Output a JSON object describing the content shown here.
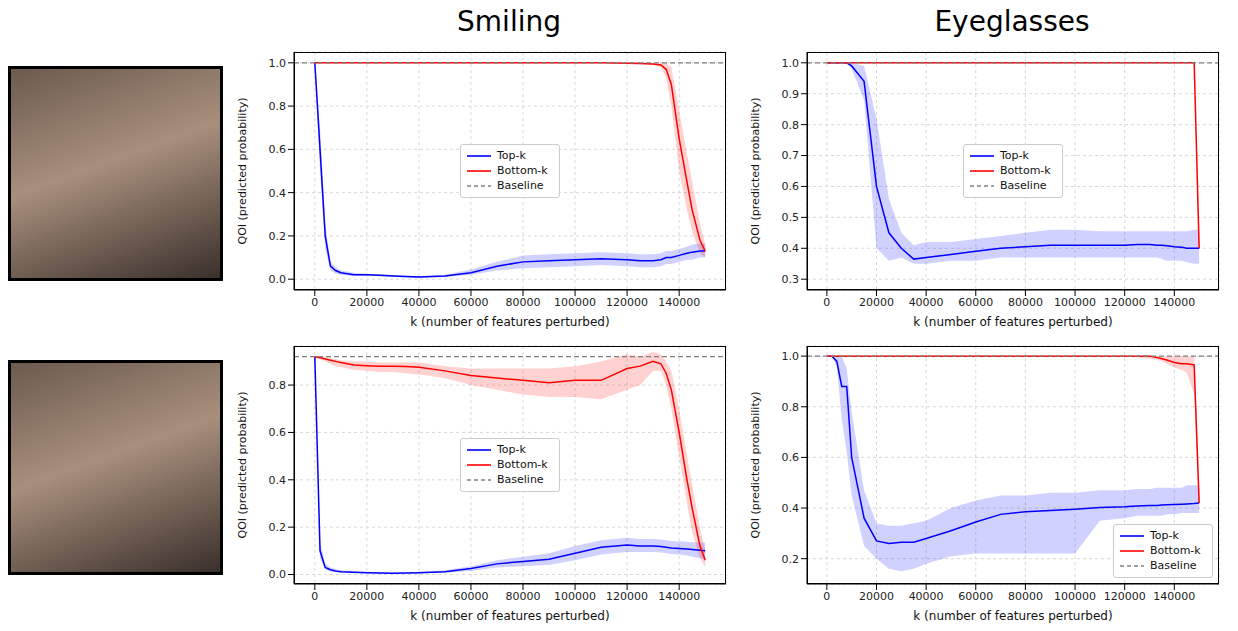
{
  "chart_data": [
    {
      "type": "line",
      "title": "Smiling",
      "xlabel": "k (number of features perturbed)",
      "ylabel": "QOI (predicted probability)",
      "xlim": [
        -8000,
        158000
      ],
      "xticks": [
        0,
        20000,
        40000,
        60000,
        80000,
        100000,
        120000,
        140000
      ],
      "ylim": [
        -0.05,
        1.05
      ],
      "yticks": [
        {
          "value": 0,
          "label": "0.0"
        },
        {
          "value": 0.2,
          "label": "0.2"
        },
        {
          "value": 0.4,
          "label": "0.4"
        },
        {
          "value": 0.6,
          "label": "0.6"
        },
        {
          "value": 0.8,
          "label": "0.8"
        },
        {
          "value": 1,
          "label": "1.0"
        }
      ],
      "grid": true,
      "legend": "center",
      "x": [
        0,
        2000,
        4000,
        6000,
        8000,
        10000,
        15000,
        20000,
        25000,
        30000,
        35000,
        40000,
        50000,
        60000,
        70000,
        80000,
        90000,
        100000,
        110000,
        120000,
        125000,
        130000,
        133000,
        135000,
        137000,
        140000,
        143000,
        145000,
        148000,
        150000
      ],
      "series": [
        {
          "name": "Top-k",
          "color": "#0000ff",
          "values": [
            1.0,
            0.6,
            0.2,
            0.06,
            0.04,
            0.03,
            0.02,
            0.02,
            0.018,
            0.015,
            0.012,
            0.01,
            0.015,
            0.03,
            0.06,
            0.08,
            0.085,
            0.09,
            0.095,
            0.09,
            0.085,
            0.085,
            0.09,
            0.1,
            0.1,
            0.11,
            0.12,
            0.125,
            0.13,
            0.13
          ],
          "lower": [
            1.0,
            0.5,
            0.14,
            0.04,
            0.025,
            0.02,
            0.015,
            0.015,
            0.013,
            0.01,
            0.008,
            0.007,
            0.01,
            0.02,
            0.04,
            0.05,
            0.055,
            0.06,
            0.065,
            0.06,
            0.055,
            0.055,
            0.06,
            0.07,
            0.07,
            0.08,
            0.09,
            0.09,
            0.1,
            0.1
          ],
          "upper": [
            1.0,
            0.7,
            0.26,
            0.08,
            0.055,
            0.04,
            0.03,
            0.025,
            0.022,
            0.02,
            0.016,
            0.014,
            0.02,
            0.045,
            0.08,
            0.11,
            0.115,
            0.12,
            0.125,
            0.12,
            0.115,
            0.115,
            0.12,
            0.13,
            0.13,
            0.14,
            0.15,
            0.16,
            0.165,
            0.165
          ]
        },
        {
          "name": "Bottom-k",
          "color": "#ff0000",
          "values": [
            1,
            1,
            1,
            1,
            1,
            1,
            1,
            1,
            1,
            1,
            1,
            1,
            1,
            1,
            1,
            1,
            1,
            1,
            1,
            0.998,
            0.997,
            0.995,
            0.99,
            0.97,
            0.9,
            0.65,
            0.45,
            0.32,
            0.18,
            0.13
          ],
          "lower": [
            1,
            1,
            1,
            1,
            1,
            1,
            1,
            1,
            1,
            1,
            1,
            1,
            1,
            1,
            1,
            1,
            1,
            1,
            1,
            0.995,
            0.993,
            0.99,
            0.98,
            0.93,
            0.8,
            0.5,
            0.32,
            0.22,
            0.12,
            0.1
          ],
          "upper": [
            1,
            1,
            1,
            1,
            1,
            1,
            1,
            1,
            1,
            1,
            1,
            1,
            1,
            1,
            1,
            1,
            1,
            1,
            1,
            1,
            1,
            1,
            1,
            1,
            0.98,
            0.78,
            0.58,
            0.45,
            0.26,
            0.16
          ]
        },
        {
          "name": "Baseline",
          "color": "#808080",
          "line_style": "dashed",
          "value": 1.0
        }
      ]
    },
    {
      "type": "line",
      "title": "Eyeglasses",
      "xlabel": "k (number of features perturbed)",
      "ylabel": "QOI (predicted probability)",
      "xlim": [
        -8000,
        158000
      ],
      "xticks": [
        0,
        20000,
        40000,
        60000,
        80000,
        100000,
        120000,
        140000
      ],
      "ylim": [
        0.265,
        1.035
      ],
      "yticks": [
        {
          "value": 0.3,
          "label": "0.3"
        },
        {
          "value": 0.4,
          "label": "0.4"
        },
        {
          "value": 0.5,
          "label": "0.5"
        },
        {
          "value": 0.6,
          "label": "0.6"
        },
        {
          "value": 0.7,
          "label": "0.7"
        },
        {
          "value": 0.8,
          "label": "0.8"
        },
        {
          "value": 0.9,
          "label": "0.9"
        },
        {
          "value": 1,
          "label": "1.0"
        }
      ],
      "grid": true,
      "legend": "center",
      "x": [
        0,
        2000,
        4000,
        6000,
        8000,
        10000,
        15000,
        20000,
        25000,
        30000,
        35000,
        40000,
        50000,
        60000,
        70000,
        80000,
        90000,
        100000,
        110000,
        120000,
        125000,
        130000,
        133000,
        135000,
        137000,
        140000,
        143000,
        145000,
        148000,
        150000
      ],
      "series": [
        {
          "name": "Top-k",
          "color": "#0000ff",
          "values": [
            1.0,
            1.0,
            1.0,
            1.0,
            1.0,
            0.99,
            0.94,
            0.6,
            0.45,
            0.4,
            0.365,
            0.37,
            0.38,
            0.39,
            0.4,
            0.405,
            0.41,
            0.41,
            0.41,
            0.41,
            0.412,
            0.412,
            0.41,
            0.41,
            0.408,
            0.405,
            0.403,
            0.4,
            0.4,
            0.4
          ],
          "lower": [
            1,
            1,
            1,
            1,
            1,
            0.98,
            0.88,
            0.4,
            0.36,
            0.37,
            0.35,
            0.35,
            0.36,
            0.36,
            0.37,
            0.37,
            0.37,
            0.37,
            0.37,
            0.37,
            0.37,
            0.37,
            0.37,
            0.365,
            0.36,
            0.36,
            0.36,
            0.355,
            0.35,
            0.35
          ],
          "upper": [
            1,
            1,
            1,
            1,
            1,
            1,
            0.99,
            0.82,
            0.56,
            0.45,
            0.41,
            0.42,
            0.42,
            0.43,
            0.44,
            0.45,
            0.46,
            0.46,
            0.455,
            0.455,
            0.455,
            0.455,
            0.455,
            0.455,
            0.455,
            0.455,
            0.455,
            0.455,
            0.46,
            0.46
          ]
        },
        {
          "name": "Bottom-k",
          "color": "#ff0000",
          "values": [
            1,
            1,
            1,
            1,
            1,
            1,
            1,
            1,
            1,
            1,
            1,
            1,
            1,
            1,
            1,
            1,
            1,
            1,
            1,
            1,
            1,
            1,
            1,
            1,
            1,
            1,
            1,
            1,
            1,
            0.4
          ],
          "lower": [
            1,
            1,
            1,
            1,
            1,
            1,
            1,
            1,
            1,
            1,
            1,
            1,
            1,
            1,
            1,
            1,
            1,
            1,
            1,
            1,
            1,
            1,
            1,
            1,
            1,
            1,
            1,
            1,
            1,
            0.4
          ],
          "upper": [
            1,
            1,
            1,
            1,
            1,
            1,
            1,
            1,
            1,
            1,
            1,
            1,
            1,
            1,
            1,
            1,
            1,
            1,
            1,
            1,
            1,
            1,
            1,
            1,
            1,
            1,
            1,
            1,
            1,
            0.4
          ]
        },
        {
          "name": "Baseline",
          "color": "#808080",
          "line_style": "dashed",
          "value": 1.0
        }
      ]
    },
    {
      "type": "line",
      "xlabel": "k (number of features perturbed)",
      "ylabel": "QOI (predicted probability)",
      "xlim": [
        -8000,
        158000
      ],
      "xticks": [
        0,
        20000,
        40000,
        60000,
        80000,
        100000,
        120000,
        140000
      ],
      "ylim": [
        -0.04,
        0.965
      ],
      "yticks": [
        {
          "value": 0,
          "label": "0.0"
        },
        {
          "value": 0.2,
          "label": "0.2"
        },
        {
          "value": 0.4,
          "label": "0.4"
        },
        {
          "value": 0.6,
          "label": "0.6"
        },
        {
          "value": 0.8,
          "label": "0.8"
        }
      ],
      "grid": true,
      "legend": "center",
      "x": [
        0,
        2000,
        4000,
        6000,
        8000,
        10000,
        15000,
        20000,
        25000,
        30000,
        35000,
        40000,
        50000,
        60000,
        70000,
        80000,
        90000,
        100000,
        110000,
        120000,
        125000,
        130000,
        133000,
        135000,
        137000,
        140000,
        143000,
        145000,
        148000,
        150000
      ],
      "series": [
        {
          "name": "Top-k",
          "color": "#0000ff",
          "values": [
            0.92,
            0.1,
            0.03,
            0.02,
            0.015,
            0.012,
            0.01,
            0.008,
            0.006,
            0.005,
            0.006,
            0.008,
            0.012,
            0.025,
            0.045,
            0.055,
            0.065,
            0.09,
            0.115,
            0.125,
            0.12,
            0.12,
            0.118,
            0.115,
            0.112,
            0.11,
            0.108,
            0.106,
            0.103,
            0.1
          ],
          "lower": [
            0.92,
            0.07,
            0.02,
            0.012,
            0.01,
            0.008,
            0.006,
            0.005,
            0.004,
            0.003,
            0.004,
            0.005,
            0.007,
            0.015,
            0.03,
            0.035,
            0.04,
            0.06,
            0.085,
            0.095,
            0.095,
            0.095,
            0.093,
            0.09,
            0.087,
            0.085,
            0.08,
            0.075,
            0.07,
            0.065
          ],
          "upper": [
            0.92,
            0.14,
            0.045,
            0.03,
            0.022,
            0.018,
            0.015,
            0.012,
            0.01,
            0.008,
            0.009,
            0.012,
            0.018,
            0.035,
            0.06,
            0.075,
            0.09,
            0.12,
            0.145,
            0.155,
            0.15,
            0.15,
            0.148,
            0.145,
            0.142,
            0.14,
            0.138,
            0.136,
            0.135,
            0.135
          ]
        },
        {
          "name": "Bottom-k",
          "color": "#ff0000",
          "values": [
            0.92,
            0.915,
            0.91,
            0.905,
            0.9,
            0.895,
            0.885,
            0.882,
            0.88,
            0.88,
            0.878,
            0.875,
            0.86,
            0.84,
            0.83,
            0.82,
            0.81,
            0.82,
            0.82,
            0.87,
            0.88,
            0.9,
            0.89,
            0.85,
            0.78,
            0.6,
            0.4,
            0.28,
            0.12,
            0.06
          ],
          "lower": [
            0.92,
            0.91,
            0.9,
            0.89,
            0.88,
            0.875,
            0.865,
            0.86,
            0.855,
            0.855,
            0.85,
            0.845,
            0.83,
            0.8,
            0.78,
            0.76,
            0.75,
            0.75,
            0.74,
            0.78,
            0.8,
            0.86,
            0.86,
            0.8,
            0.7,
            0.5,
            0.3,
            0.18,
            0.07,
            0.03
          ],
          "upper": [
            0.92,
            0.92,
            0.92,
            0.915,
            0.91,
            0.905,
            0.9,
            0.9,
            0.895,
            0.895,
            0.895,
            0.895,
            0.88,
            0.87,
            0.87,
            0.87,
            0.87,
            0.88,
            0.9,
            0.93,
            0.92,
            0.94,
            0.93,
            0.9,
            0.86,
            0.7,
            0.5,
            0.38,
            0.2,
            0.1
          ]
        },
        {
          "name": "Baseline",
          "color": "#808080",
          "line_style": "dashed",
          "value": 0.92
        }
      ]
    },
    {
      "type": "line",
      "xlabel": "k (number of features perturbed)",
      "ylabel": "QOI (predicted probability)",
      "xlim": [
        -8000,
        158000
      ],
      "xticks": [
        0,
        20000,
        40000,
        60000,
        80000,
        100000,
        120000,
        140000
      ],
      "ylim": [
        0.1,
        1.04
      ],
      "yticks": [
        {
          "value": 0.2,
          "label": "0.2"
        },
        {
          "value": 0.4,
          "label": "0.4"
        },
        {
          "value": 0.6,
          "label": "0.6"
        },
        {
          "value": 0.8,
          "label": "0.8"
        },
        {
          "value": 1,
          "label": "1.0"
        }
      ],
      "grid": true,
      "legend": "lower right",
      "x": [
        0,
        2000,
        4000,
        6000,
        8000,
        10000,
        15000,
        20000,
        25000,
        30000,
        35000,
        40000,
        50000,
        60000,
        70000,
        80000,
        90000,
        100000,
        110000,
        120000,
        125000,
        130000,
        133000,
        135000,
        137000,
        140000,
        143000,
        145000,
        148000,
        150000
      ],
      "series": [
        {
          "name": "Top-k",
          "color": "#0000ff",
          "values": [
            1.0,
            1.0,
            0.98,
            0.88,
            0.88,
            0.6,
            0.36,
            0.27,
            0.26,
            0.265,
            0.265,
            0.28,
            0.31,
            0.345,
            0.375,
            0.385,
            0.39,
            0.395,
            0.402,
            0.405,
            0.408,
            0.41,
            0.41,
            0.412,
            0.413,
            0.414,
            0.415,
            0.416,
            0.418,
            0.42
          ],
          "lower": [
            1,
            1,
            0.96,
            0.75,
            0.62,
            0.45,
            0.25,
            0.2,
            0.16,
            0.15,
            0.16,
            0.18,
            0.21,
            0.22,
            0.22,
            0.22,
            0.22,
            0.22,
            0.35,
            0.36,
            0.37,
            0.37,
            0.37,
            0.37,
            0.375,
            0.375,
            0.38,
            0.38,
            0.38,
            0.38
          ],
          "upper": [
            1,
            1,
            1,
            1,
            0.95,
            0.78,
            0.47,
            0.34,
            0.33,
            0.33,
            0.34,
            0.35,
            0.4,
            0.43,
            0.45,
            0.45,
            0.46,
            0.46,
            0.47,
            0.47,
            0.475,
            0.475,
            0.48,
            0.48,
            0.48,
            0.48,
            0.48,
            0.49,
            0.49,
            0.49
          ]
        },
        {
          "name": "Bottom-k",
          "color": "#ff0000",
          "values": [
            1,
            1,
            1,
            1,
            1,
            1,
            1,
            1,
            1,
            1,
            1,
            1,
            1,
            1,
            1,
            1,
            1,
            1,
            1,
            1,
            1,
            1,
            0.995,
            0.99,
            0.985,
            0.975,
            0.97,
            0.97,
            0.965,
            0.42
          ],
          "lower": [
            1,
            1,
            1,
            1,
            1,
            1,
            1,
            1,
            1,
            1,
            1,
            1,
            1,
            1,
            1,
            1,
            1,
            1,
            1,
            1,
            0.995,
            0.99,
            0.985,
            0.98,
            0.97,
            0.955,
            0.945,
            0.935,
            0.85,
            0.38
          ],
          "upper": [
            1,
            1,
            1,
            1,
            1,
            1,
            1,
            1,
            1,
            1,
            1,
            1,
            1,
            1,
            1,
            1,
            1,
            1,
            1,
            1,
            1,
            1,
            1,
            1,
            1,
            1,
            1,
            1,
            1,
            0.46
          ]
        },
        {
          "name": "Baseline",
          "color": "#808080",
          "line_style": "dashed",
          "value": 1.0
        }
      ]
    }
  ]
}
